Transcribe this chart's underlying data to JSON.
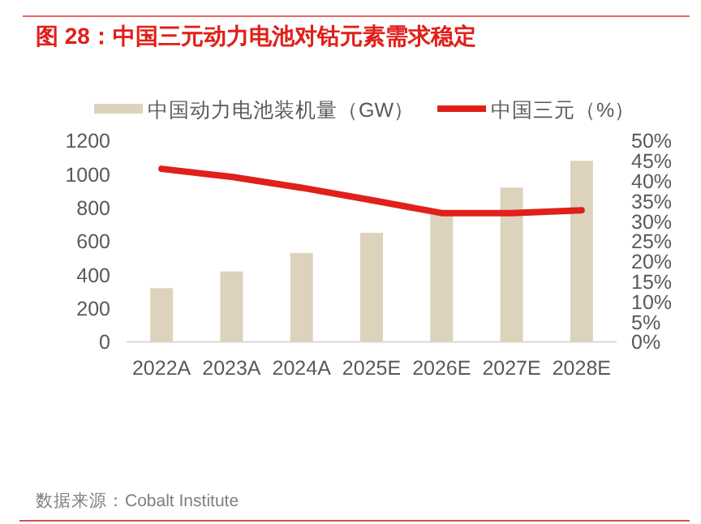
{
  "chart_data": {
    "type": "bar",
    "title": "图 28：中国三元动力电池对钴元素需求稳定",
    "categories": [
      "2022A",
      "2023A",
      "2024A",
      "2025E",
      "2026E",
      "2027E",
      "2028E"
    ],
    "series": [
      {
        "name": "中国动力电池装机量（GW）",
        "color": "#ddd3bc",
        "values": [
          320,
          420,
          530,
          650,
          770,
          920,
          1080
        ]
      },
      {
        "name": "中国三元（%）",
        "type": "line",
        "axis": "y2",
        "color": "#e0201b",
        "values": [
          43,
          41,
          38.3,
          35.2,
          32,
          32,
          32.7
        ]
      }
    ],
    "ylim": [
      0,
      1200
    ],
    "yticks": [
      0,
      200,
      400,
      600,
      800,
      1000,
      1200
    ],
    "y2lim": [
      0,
      50
    ],
    "y2ticks": [
      {
        "value": 0,
        "label": "0%"
      },
      {
        "value": 5,
        "label": "5%"
      },
      {
        "value": 10,
        "label": "10%"
      },
      {
        "value": 15,
        "label": "15%"
      },
      {
        "value": 20,
        "label": "20%"
      },
      {
        "value": 25,
        "label": "25%"
      },
      {
        "value": 30,
        "label": "30%"
      },
      {
        "value": 35,
        "label": "35%"
      },
      {
        "value": 40,
        "label": "40%"
      },
      {
        "value": 45,
        "label": "45%"
      },
      {
        "value": 50,
        "label": "50%"
      }
    ],
    "legend": "top",
    "annotations": [
      "数据来源：Cobalt Institute"
    ]
  }
}
